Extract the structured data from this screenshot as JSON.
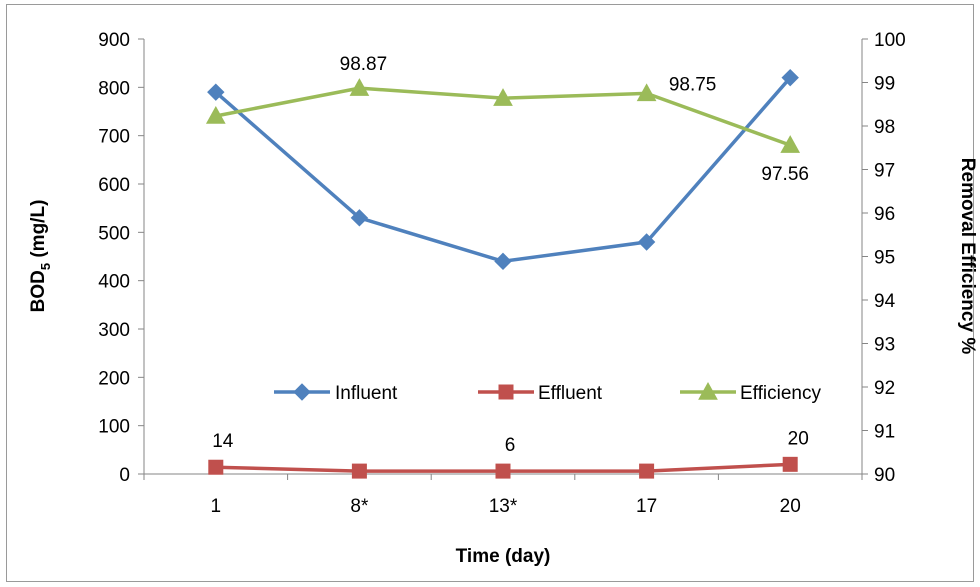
{
  "chart_data": {
    "type": "line",
    "categories": [
      "1",
      "8*",
      "13*",
      "17",
      "20"
    ],
    "xlabel": "Time (day)",
    "ylabel_main": "BOD",
    "ylabel_sub": "5",
    "ylabel_unit": " (mg/L)",
    "y2label": "Removal Efficiency %",
    "ylim": [
      0,
      900
    ],
    "yticks": [
      0,
      100,
      200,
      300,
      400,
      500,
      600,
      700,
      800,
      900
    ],
    "y2lim": [
      90,
      100
    ],
    "y2ticks": [
      90,
      91,
      92,
      93,
      94,
      95,
      96,
      97,
      98,
      99,
      100
    ],
    "legend_position": "bottom-center inside plot",
    "grid": false,
    "series": [
      {
        "name": "Influent",
        "axis": "left",
        "marker": "diamond",
        "color": "#4f81bd",
        "values": [
          790,
          530,
          440,
          480,
          820
        ],
        "labels": [
          "",
          "",
          "",
          "",
          ""
        ]
      },
      {
        "name": "Effluent",
        "axis": "left",
        "marker": "square",
        "color": "#c0504d",
        "values": [
          14,
          6,
          6,
          6,
          20
        ],
        "labels": [
          "14",
          "",
          "6",
          "",
          "20"
        ]
      },
      {
        "name": "Efficiency",
        "axis": "right",
        "marker": "triangle",
        "color": "#9bbb59",
        "values": [
          98.23,
          98.87,
          98.64,
          98.75,
          97.56
        ],
        "labels": [
          "",
          "98.87",
          "",
          "98.75",
          "97.56"
        ]
      }
    ]
  }
}
